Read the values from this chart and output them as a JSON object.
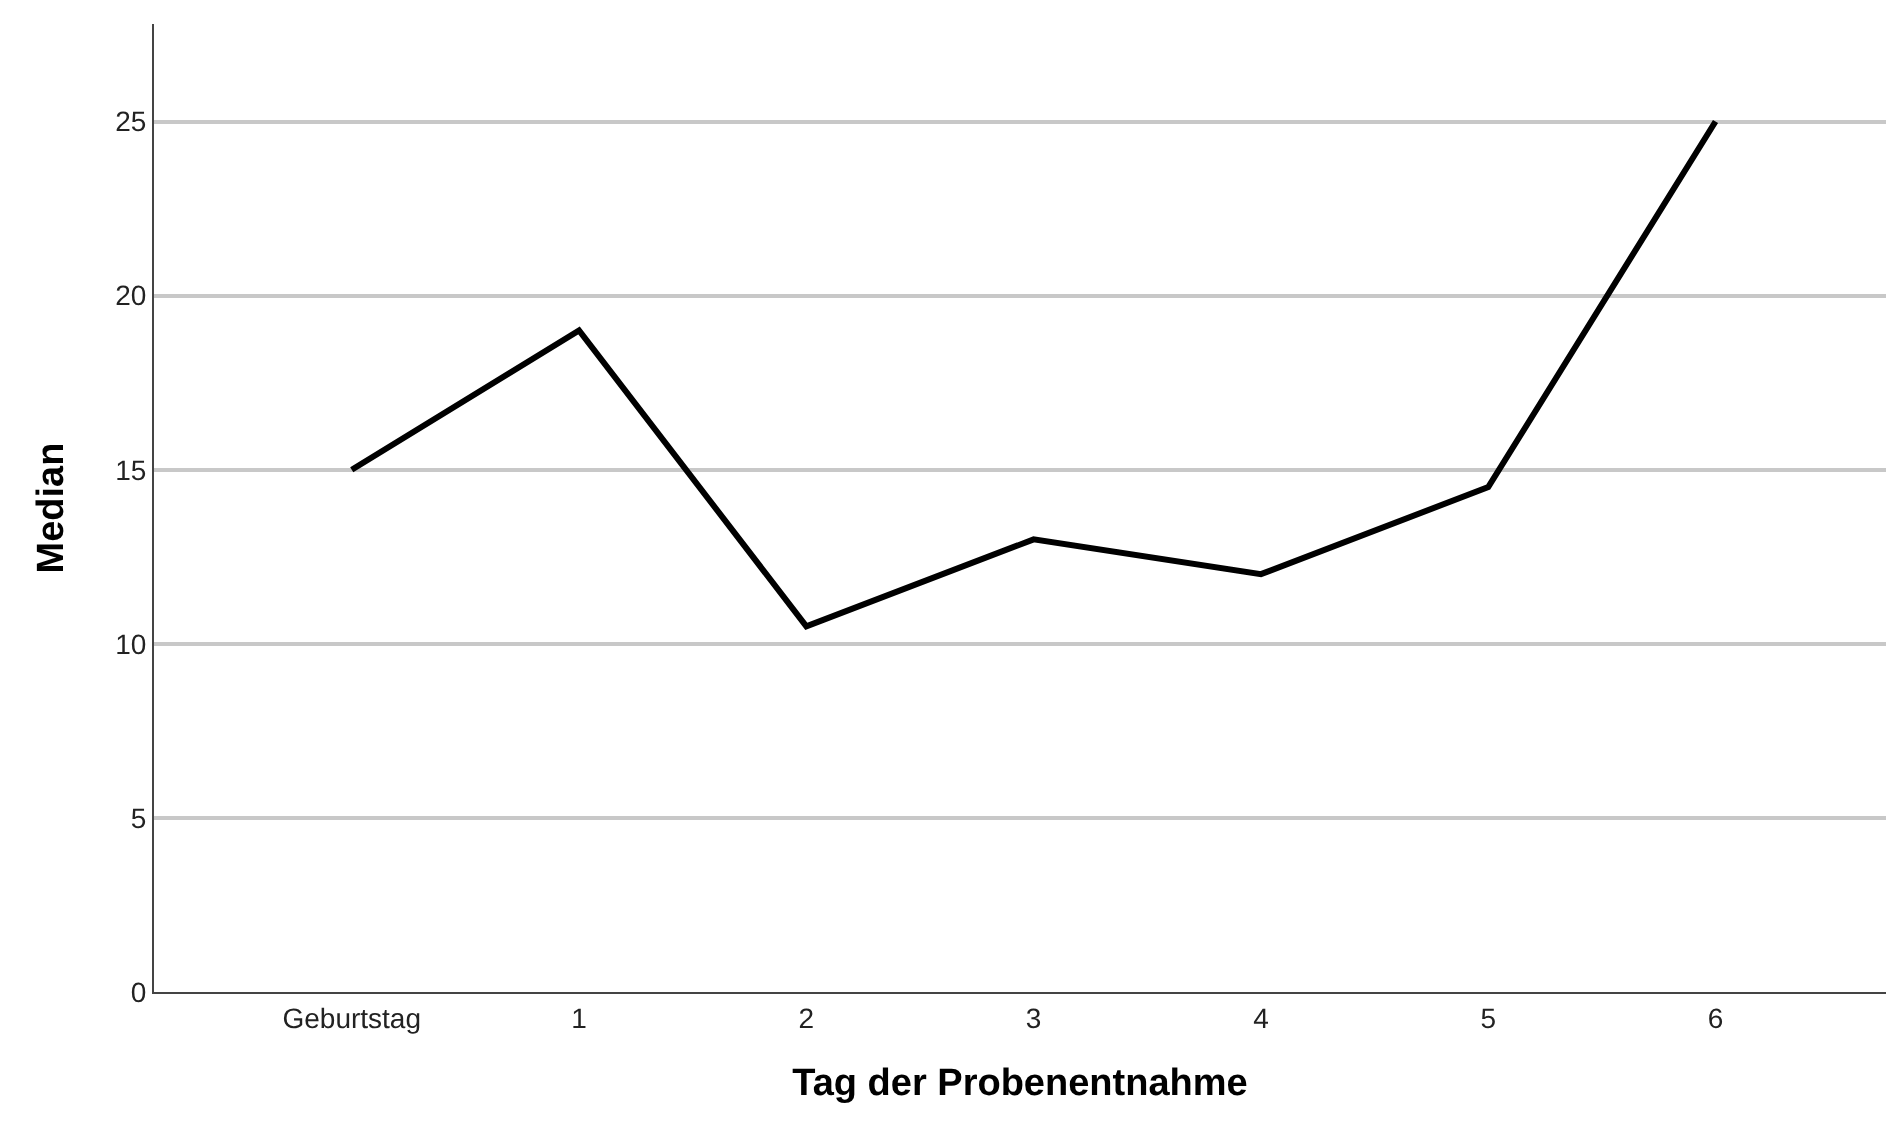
{
  "chart_data": {
    "type": "line",
    "xlabel": "Tag der Probenentnahme",
    "ylabel": "Median",
    "categories": [
      "Geburtstag",
      "1",
      "2",
      "3",
      "4",
      "5",
      "6"
    ],
    "series": [
      {
        "color": "#000000",
        "values": [
          15,
          19,
          10.5,
          13,
          12,
          14.5,
          25
        ]
      }
    ],
    "ylim": [
      0,
      27.8
    ],
    "yticks": [
      0,
      5,
      10,
      15,
      20,
      25
    ],
    "grid": "y",
    "marker": "none",
    "line_style": "solid"
  }
}
